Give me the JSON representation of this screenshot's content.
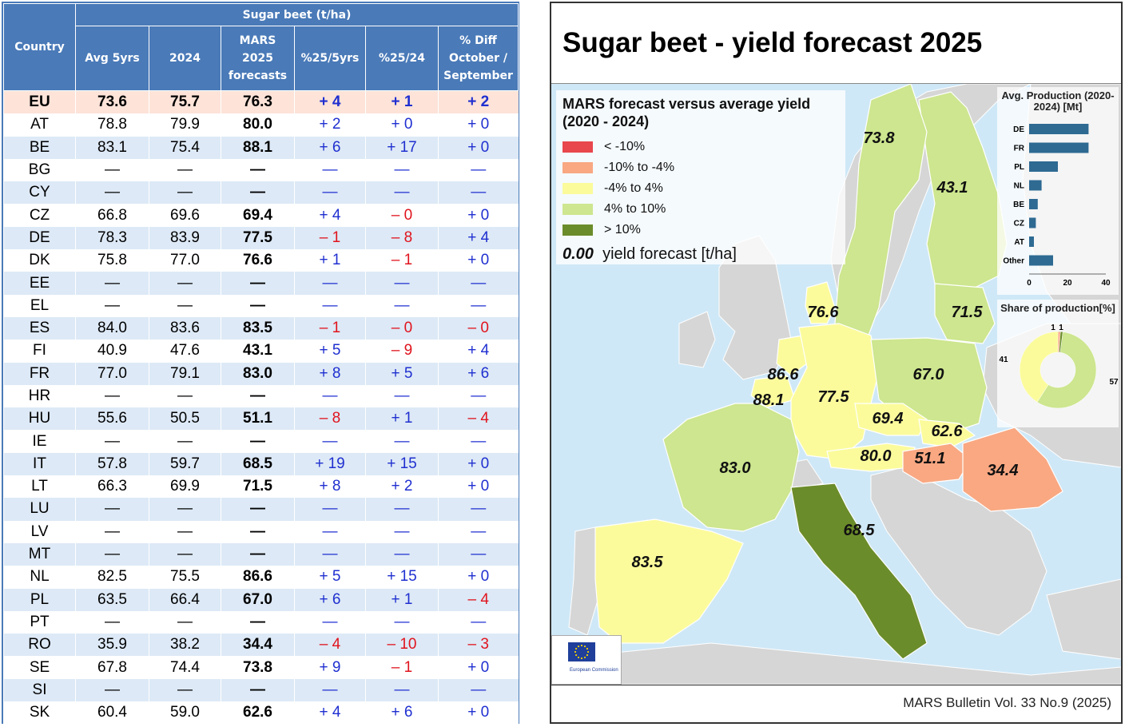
{
  "table": {
    "header_group": "Sugar beet (t/ha)",
    "col_country": "Country",
    "columns": [
      "Avg 5yrs",
      "2024",
      "MARS 2025 forecasts",
      "%25/5yrs",
      "%25/24",
      "% Diff October / September"
    ],
    "rows": [
      {
        "c": "EU",
        "avg": "73.6",
        "y24": "75.7",
        "fc": "76.3",
        "p5": "+ 4",
        "p24": "+ 1",
        "pd": "+ 2"
      },
      {
        "c": "AT",
        "avg": "78.8",
        "y24": "79.9",
        "fc": "80.0",
        "p5": "+ 2",
        "p24": "+ 0",
        "pd": "+ 0"
      },
      {
        "c": "BE",
        "avg": "83.1",
        "y24": "75.4",
        "fc": "88.1",
        "p5": "+ 6",
        "p24": "+ 17",
        "pd": "+ 0"
      },
      {
        "c": "BG",
        "avg": "—",
        "y24": "—",
        "fc": "—",
        "p5": "—",
        "p24": "—",
        "pd": "—"
      },
      {
        "c": "CY",
        "avg": "—",
        "y24": "—",
        "fc": "—",
        "p5": "—",
        "p24": "—",
        "pd": "—"
      },
      {
        "c": "CZ",
        "avg": "66.8",
        "y24": "69.6",
        "fc": "69.4",
        "p5": "+ 4",
        "p24": "– 0",
        "pd": "+ 0"
      },
      {
        "c": "DE",
        "avg": "78.3",
        "y24": "83.9",
        "fc": "77.5",
        "p5": "– 1",
        "p24": "– 8",
        "pd": "+ 4"
      },
      {
        "c": "DK",
        "avg": "75.8",
        "y24": "77.0",
        "fc": "76.6",
        "p5": "+ 1",
        "p24": "– 1",
        "pd": "+ 0"
      },
      {
        "c": "EE",
        "avg": "—",
        "y24": "—",
        "fc": "—",
        "p5": "—",
        "p24": "—",
        "pd": "—"
      },
      {
        "c": "EL",
        "avg": "—",
        "y24": "—",
        "fc": "—",
        "p5": "—",
        "p24": "—",
        "pd": "—"
      },
      {
        "c": "ES",
        "avg": "84.0",
        "y24": "83.6",
        "fc": "83.5",
        "p5": "– 1",
        "p24": "– 0",
        "pd": "– 0"
      },
      {
        "c": "FI",
        "avg": "40.9",
        "y24": "47.6",
        "fc": "43.1",
        "p5": "+ 5",
        "p24": "– 9",
        "pd": "+ 4"
      },
      {
        "c": "FR",
        "avg": "77.0",
        "y24": "79.1",
        "fc": "83.0",
        "p5": "+ 8",
        "p24": "+ 5",
        "pd": "+ 6"
      },
      {
        "c": "HR",
        "avg": "—",
        "y24": "—",
        "fc": "—",
        "p5": "—",
        "p24": "—",
        "pd": "—"
      },
      {
        "c": "HU",
        "avg": "55.6",
        "y24": "50.5",
        "fc": "51.1",
        "p5": "– 8",
        "p24": "+ 1",
        "pd": "– 4"
      },
      {
        "c": "IE",
        "avg": "—",
        "y24": "—",
        "fc": "—",
        "p5": "—",
        "p24": "—",
        "pd": "—"
      },
      {
        "c": "IT",
        "avg": "57.8",
        "y24": "59.7",
        "fc": "68.5",
        "p5": "+ 19",
        "p24": "+ 15",
        "pd": "+ 0"
      },
      {
        "c": "LT",
        "avg": "66.3",
        "y24": "69.9",
        "fc": "71.5",
        "p5": "+ 8",
        "p24": "+ 2",
        "pd": "+ 0"
      },
      {
        "c": "LU",
        "avg": "—",
        "y24": "—",
        "fc": "—",
        "p5": "—",
        "p24": "—",
        "pd": "—"
      },
      {
        "c": "LV",
        "avg": "—",
        "y24": "—",
        "fc": "—",
        "p5": "—",
        "p24": "—",
        "pd": "—"
      },
      {
        "c": "MT",
        "avg": "—",
        "y24": "—",
        "fc": "—",
        "p5": "—",
        "p24": "—",
        "pd": "—"
      },
      {
        "c": "NL",
        "avg": "82.5",
        "y24": "75.5",
        "fc": "86.6",
        "p5": "+ 5",
        "p24": "+ 15",
        "pd": "+ 0"
      },
      {
        "c": "PL",
        "avg": "63.5",
        "y24": "66.4",
        "fc": "67.0",
        "p5": "+ 6",
        "p24": "+ 1",
        "pd": "– 4"
      },
      {
        "c": "PT",
        "avg": "—",
        "y24": "—",
        "fc": "—",
        "p5": "—",
        "p24": "—",
        "pd": "—"
      },
      {
        "c": "RO",
        "avg": "35.9",
        "y24": "38.2",
        "fc": "34.4",
        "p5": "– 4",
        "p24": "– 10",
        "pd": "– 3"
      },
      {
        "c": "SE",
        "avg": "67.8",
        "y24": "74.4",
        "fc": "73.8",
        "p5": "+ 9",
        "p24": "– 1",
        "pd": "+ 0"
      },
      {
        "c": "SI",
        "avg": "—",
        "y24": "—",
        "fc": "—",
        "p5": "—",
        "p24": "—",
        "pd": "—"
      },
      {
        "c": "SK",
        "avg": "60.4",
        "y24": "59.0",
        "fc": "62.6",
        "p5": "+ 4",
        "p24": "+ 6",
        "pd": "+ 0"
      }
    ]
  },
  "map": {
    "title": "Sugar beet - yield forecast 2025",
    "legend_title": "MARS forecast versus average yield (2020 - 2024)",
    "legend": [
      {
        "label": "< -10%",
        "color": "#e8474c"
      },
      {
        "label": "-10% to -4%",
        "color": "#f9a882"
      },
      {
        "label": "-4% to 4%",
        "color": "#fbfb9c"
      },
      {
        "label": "4% to 10%",
        "color": "#cde68f"
      },
      {
        "label": "> 10%",
        "color": "#6b8c2a"
      }
    ],
    "yield_note_value": "0.00",
    "yield_note_text": "yield forecast [t/ha]",
    "footer": "MARS Bulletin Vol. 33 No.9 (2025)",
    "eu_logo_text": "European Commission",
    "labels": {
      "SE": "73.8",
      "FI": "43.1",
      "DK": "76.6",
      "LT": "71.5",
      "NL": "86.6",
      "BE": "88.1",
      "DE": "77.5",
      "PL": "67.0",
      "CZ": "69.4",
      "SK": "62.6",
      "AT": "80.0",
      "HU": "51.1",
      "RO": "34.4",
      "FR": "83.0",
      "IT": "68.5",
      "ES": "83.5"
    }
  },
  "production": {
    "title": "Avg. Production (2020-2024) [Mt]",
    "bar_color": "#2e6a92",
    "categories": [
      "DE",
      "FR",
      "PL",
      "NL",
      "BE",
      "CZ",
      "AT",
      "Other"
    ],
    "values": [
      31,
      31,
      15,
      6.5,
      4.5,
      3.5,
      2.5,
      12.5
    ],
    "ticks": [
      "0",
      "20",
      "40"
    ],
    "xlim": [
      0,
      40
    ]
  },
  "share": {
    "title": "Share of production[%]",
    "values": [
      57,
      41,
      1,
      1
    ],
    "labels": [
      "57",
      "41",
      "1",
      "1"
    ],
    "colors": [
      "#cde68f",
      "#fbfb9c",
      "#f9a882",
      "#6b8c2a"
    ]
  },
  "chart_data": [
    {
      "type": "bar",
      "title": "Avg. Production (2020-2024) [Mt]",
      "categories": [
        "DE",
        "FR",
        "PL",
        "NL",
        "BE",
        "CZ",
        "AT",
        "Other"
      ],
      "values": [
        31,
        31,
        15,
        6.5,
        4.5,
        3.5,
        2.5,
        12.5
      ],
      "xlim": [
        0,
        40
      ]
    },
    {
      "type": "pie",
      "title": "Share of production[%]",
      "categories": [
        "4% to 10%",
        "-4% to 4%",
        "-10% to -4%",
        "> 10%"
      ],
      "values": [
        57,
        41,
        1,
        1
      ]
    }
  ]
}
